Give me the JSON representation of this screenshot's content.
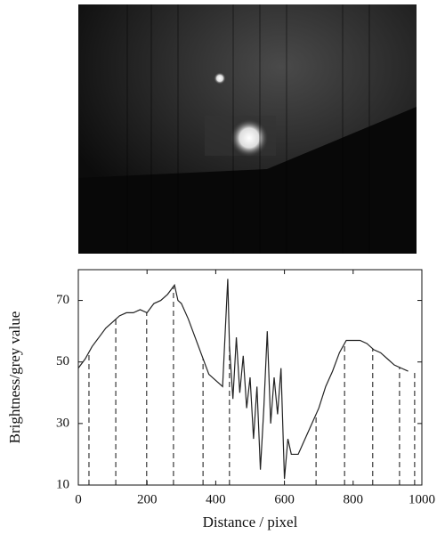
{
  "chart_data": {
    "type": "line",
    "xlabel": "Distance / pixel",
    "ylabel": "Brightness/grey value",
    "x": [
      0,
      20,
      40,
      60,
      80,
      100,
      120,
      140,
      160,
      180,
      200,
      220,
      240,
      260,
      280,
      290,
      300,
      320,
      340,
      360,
      380,
      400,
      420,
      435,
      440,
      450,
      460,
      470,
      480,
      490,
      500,
      510,
      520,
      530,
      540,
      550,
      560,
      570,
      580,
      590,
      600,
      610,
      620,
      640,
      660,
      680,
      700,
      720,
      740,
      760,
      780,
      800,
      820,
      840,
      860,
      880,
      900,
      920,
      940,
      960
    ],
    "values": [
      48,
      51,
      55,
      58,
      61,
      63,
      65,
      66,
      66,
      67,
      66,
      69,
      70,
      72,
      75,
      70,
      69,
      64,
      58,
      52,
      46,
      44,
      42,
      77,
      55,
      38,
      58,
      40,
      52,
      35,
      45,
      25,
      42,
      15,
      35,
      60,
      30,
      45,
      33,
      48,
      12,
      25,
      20,
      20,
      25,
      30,
      35,
      42,
      47,
      53,
      57,
      57,
      57,
      56,
      54,
      53,
      51,
      49,
      48,
      47
    ],
    "markers": [
      31,
      109,
      199,
      277,
      363,
      440,
      692,
      775,
      857,
      935,
      979
    ],
    "color": "#222222",
    "xlim": [
      0,
      1000
    ],
    "xticks": [
      0,
      200,
      400,
      600,
      800,
      1000
    ],
    "ylim": [
      10,
      80
    ],
    "yticks": [
      10,
      30,
      50,
      70
    ],
    "grid": false
  }
}
